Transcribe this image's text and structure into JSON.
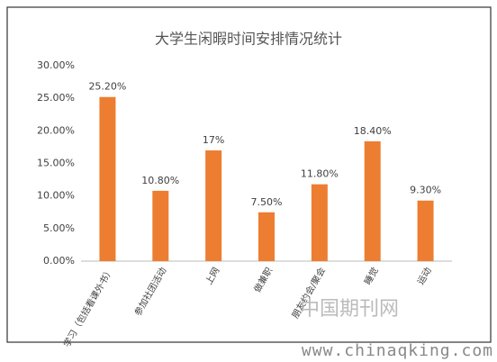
{
  "chart_data": {
    "type": "bar",
    "title": "大学生闲暇时间安排情况统计",
    "categories": [
      "学习（包括看课外书）",
      "参加社团活动",
      "上网",
      "做兼职",
      "朋友约会/聚会",
      "睡觉",
      "运动"
    ],
    "values": [
      25.2,
      10.8,
      17,
      7.5,
      11.8,
      18.4,
      9.3
    ],
    "value_labels": [
      "25.20%",
      "10.80%",
      "17%",
      "7.50%",
      "11.80%",
      "18.40%",
      "9.30%"
    ],
    "color": "#ed7d31",
    "ylim": [
      0,
      30
    ],
    "yticks": [
      {
        "value": 0,
        "label": "0.00%"
      },
      {
        "value": 5,
        "label": "5.00%"
      },
      {
        "value": 10,
        "label": "10.00%"
      },
      {
        "value": 15,
        "label": "15.00%"
      },
      {
        "value": 20,
        "label": "20.00%"
      },
      {
        "value": 25,
        "label": "25.00%"
      },
      {
        "value": 30,
        "label": "30.00%"
      }
    ],
    "grid": false,
    "annotations": [
      "中国期刊网",
      "www.chinaqking.com"
    ]
  }
}
